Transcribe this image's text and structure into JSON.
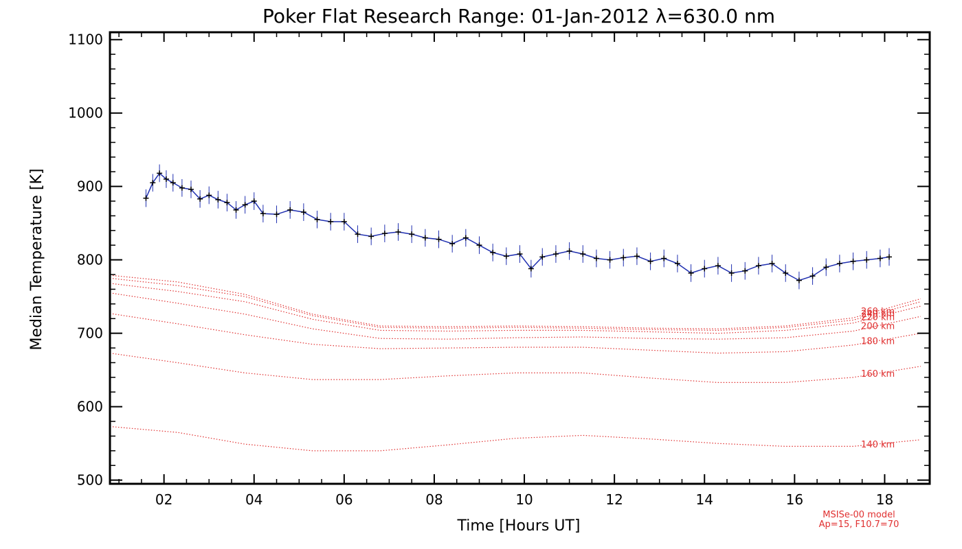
{
  "chart_data": {
    "type": "line",
    "title": "Poker Flat Research Range: 01-Jan-2012 λ=630.0 nm",
    "xlabel": "Time [Hours UT]",
    "ylabel": "Median Temperature [K]",
    "xlim": [
      0.8,
      19.0
    ],
    "ylim": [
      495,
      1110
    ],
    "x_ticks": [
      2,
      4,
      6,
      8,
      10,
      12,
      14,
      16,
      18
    ],
    "x_tick_labels": [
      "02",
      "04",
      "06",
      "08",
      "10",
      "12",
      "14",
      "16",
      "18"
    ],
    "y_ticks": [
      500,
      600,
      700,
      800,
      900,
      1000,
      1100
    ],
    "y_tick_labels": [
      "500",
      "600",
      "700",
      "800",
      "900",
      "1000",
      "1100"
    ],
    "grid": false,
    "measured": {
      "color": "#1f2fb0",
      "marker_color": "#000000",
      "error_bar_k": 12,
      "x": [
        1.6,
        1.75,
        1.9,
        2.05,
        2.2,
        2.4,
        2.6,
        2.8,
        3.0,
        3.2,
        3.4,
        3.6,
        3.8,
        4.0,
        4.2,
        4.5,
        4.8,
        5.1,
        5.4,
        5.7,
        6.0,
        6.3,
        6.6,
        6.9,
        7.2,
        7.5,
        7.8,
        8.1,
        8.4,
        8.7,
        9.0,
        9.3,
        9.6,
        9.9,
        10.15,
        10.4,
        10.7,
        11.0,
        11.3,
        11.6,
        11.9,
        12.2,
        12.5,
        12.8,
        13.1,
        13.4,
        13.7,
        14.0,
        14.3,
        14.6,
        14.9,
        15.2,
        15.5,
        15.8,
        16.1,
        16.4,
        16.7,
        17.0,
        17.3,
        17.6,
        17.9,
        18.1
      ],
      "y": [
        884,
        905,
        918,
        910,
        905,
        898,
        896,
        883,
        888,
        882,
        878,
        868,
        875,
        880,
        863,
        862,
        868,
        865,
        855,
        852,
        852,
        835,
        832,
        836,
        838,
        835,
        830,
        828,
        822,
        830,
        820,
        810,
        805,
        808,
        788,
        804,
        808,
        812,
        808,
        802,
        800,
        803,
        805,
        798,
        802,
        795,
        782,
        788,
        792,
        782,
        785,
        792,
        795,
        782,
        772,
        778,
        790,
        795,
        798,
        800,
        802,
        804
      ]
    },
    "model_series": [
      {
        "name": "140 km",
        "values": [
          573,
          565,
          549,
          540,
          540,
          548,
          557,
          561,
          556,
          550,
          546,
          546,
          555
        ]
      },
      {
        "name": "160 km",
        "values": [
          673,
          660,
          646,
          637,
          637,
          642,
          646,
          646,
          639,
          633,
          633,
          640,
          655
        ]
      },
      {
        "name": "180 km",
        "values": [
          727,
          713,
          698,
          685,
          679,
          680,
          681,
          681,
          677,
          673,
          675,
          684,
          700
        ]
      },
      {
        "name": "200 km",
        "values": [
          755,
          741,
          726,
          706,
          693,
          692,
          694,
          695,
          693,
          692,
          694,
          703,
          723
        ]
      },
      {
        "name": "220 km",
        "values": [
          768,
          757,
          743,
          719,
          704,
          703,
          704,
          704,
          702,
          700,
          704,
          714,
          737
        ]
      },
      {
        "name": "240 km",
        "values": [
          775,
          765,
          750,
          724,
          708,
          707,
          708,
          707,
          705,
          704,
          708,
          718,
          743
        ]
      },
      {
        "name": "260 km",
        "values": [
          779,
          770,
          753,
          726,
          710,
          709,
          710,
          709,
          707,
          706,
          710,
          721,
          747
        ]
      }
    ],
    "model_x": [
      0.8,
      2.3,
      3.8,
      5.3,
      6.8,
      8.3,
      9.8,
      11.3,
      12.8,
      14.3,
      15.8,
      17.3,
      18.8
    ],
    "model_color": "#e03030",
    "model_note": [
      "MSISe-00 model",
      "Ap=15, F10.7=70"
    ]
  }
}
